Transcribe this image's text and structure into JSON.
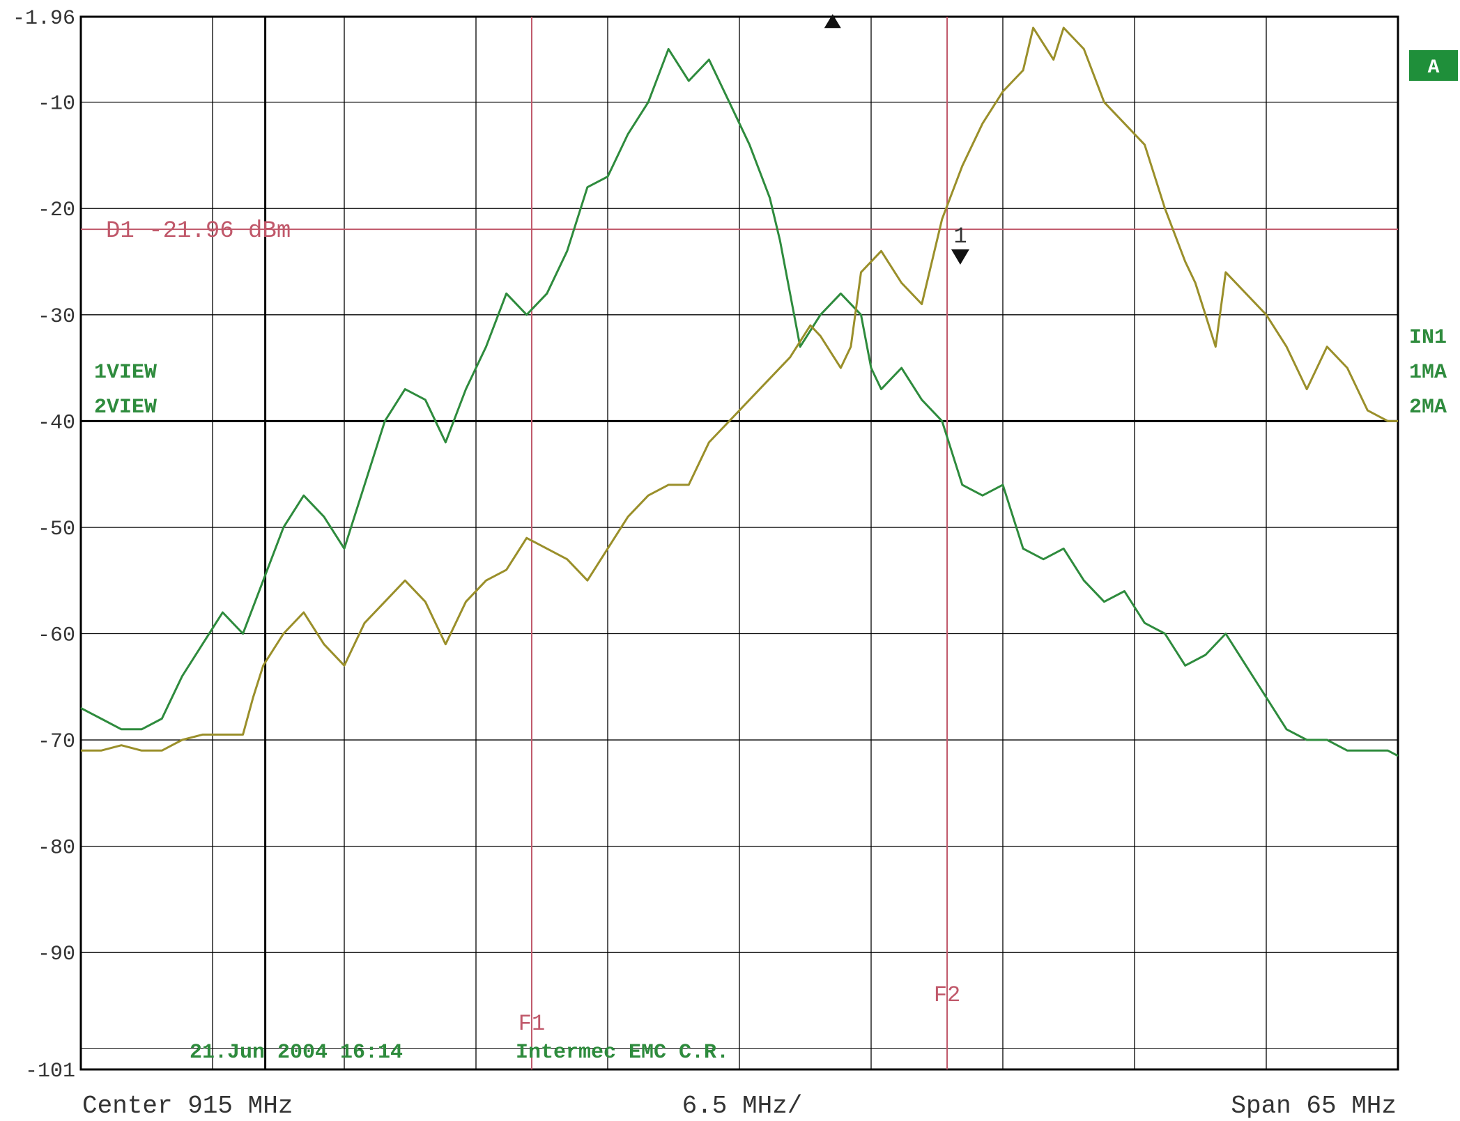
{
  "chart_data": {
    "type": "line",
    "title": "",
    "xlabel": "",
    "ylabel": "",
    "x_unit": "MHz",
    "y_unit": "dBm",
    "xlim": [
      882.5,
      947.5
    ],
    "ylim": [
      -101,
      -1.96
    ],
    "x_grid_step": 6.5,
    "y_ticks": [
      {
        "value": -1.96,
        "label": "-1.96"
      },
      {
        "value": -10,
        "label": "-10"
      },
      {
        "value": -20,
        "label": "-20"
      },
      {
        "value": -30,
        "label": "-30"
      },
      {
        "value": -40,
        "label": "-40"
      },
      {
        "value": -50,
        "label": "-50"
      },
      {
        "value": -60,
        "label": "-60"
      },
      {
        "value": -70,
        "label": "-70"
      },
      {
        "value": -80,
        "label": "-80"
      },
      {
        "value": -90,
        "label": "-90"
      },
      {
        "value": -101,
        "label": "-101"
      }
    ],
    "grid": true,
    "bottom_labels": {
      "center": "Center 915 MHz",
      "scale": "6.5 MHz/",
      "span": "Span 65 MHz"
    },
    "annotation_date": "21.Jun 2004 16:14",
    "annotation_lab": "Intermec EMC C.R.",
    "display_line": {
      "label": "D1 -21.96 dBm",
      "value": -21.96
    },
    "frequency_lines": [
      {
        "label": "F1",
        "x": 904.75
      },
      {
        "label": "F2",
        "x": 925.25
      }
    ],
    "reference_line": {
      "y": -40,
      "x": 891.6
    },
    "marker": {
      "label": "1",
      "x": 925.9,
      "y": -24.5
    },
    "peak_marker": {
      "x": 919.6,
      "y": -2.5
    },
    "left_labels": [
      "1VIEW",
      "2VIEW"
    ],
    "right_labels": [
      "IN1",
      "1MA",
      "2MA"
    ],
    "screen_label": "A",
    "colors": {
      "trace1": "#2e8b3d",
      "trace2": "#9a8f2a",
      "grid": "#000000",
      "freq_lines": "#c0586a",
      "display_line": "#c0586a",
      "text": "#333333",
      "annotation": "#2e8b3d",
      "screen_badge": "#1f8f3a"
    },
    "series": [
      {
        "name": "",
        "color_key": "trace1",
        "points": [
          [
            882.5,
            -67
          ],
          [
            883.5,
            -68
          ],
          [
            884.5,
            -69
          ],
          [
            885.5,
            -69
          ],
          [
            886.5,
            -68
          ],
          [
            887.5,
            -64
          ],
          [
            888.5,
            -61
          ],
          [
            889.5,
            -58
          ],
          [
            890.5,
            -60
          ],
          [
            891.5,
            -55
          ],
          [
            892.5,
            -50
          ],
          [
            893.5,
            -47
          ],
          [
            894.5,
            -49
          ],
          [
            895.5,
            -52
          ],
          [
            896.5,
            -46
          ],
          [
            897.5,
            -40
          ],
          [
            898.5,
            -37
          ],
          [
            899.5,
            -38
          ],
          [
            900.5,
            -42
          ],
          [
            901.5,
            -37
          ],
          [
            902.5,
            -33
          ],
          [
            903.5,
            -28
          ],
          [
            904.5,
            -30
          ],
          [
            905.5,
            -28
          ],
          [
            906.5,
            -24
          ],
          [
            907.5,
            -18
          ],
          [
            908.5,
            -17
          ],
          [
            909.5,
            -13
          ],
          [
            910.5,
            -10
          ],
          [
            911.5,
            -5
          ],
          [
            912.5,
            -8
          ],
          [
            913.5,
            -6
          ],
          [
            914.5,
            -10
          ],
          [
            915.5,
            -14
          ],
          [
            916.5,
            -19
          ],
          [
            917.0,
            -23
          ],
          [
            918.0,
            -33
          ],
          [
            919.0,
            -30
          ],
          [
            920.0,
            -28
          ],
          [
            921.0,
            -30
          ],
          [
            921.5,
            -35
          ],
          [
            922.0,
            -37
          ],
          [
            923.0,
            -35
          ],
          [
            924.0,
            -38
          ],
          [
            925.0,
            -40
          ],
          [
            926.0,
            -46
          ],
          [
            927.0,
            -47
          ],
          [
            928.0,
            -46
          ],
          [
            929.0,
            -52
          ],
          [
            930.0,
            -53
          ],
          [
            931.0,
            -52
          ],
          [
            932.0,
            -55
          ],
          [
            933.0,
            -57
          ],
          [
            934.0,
            -56
          ],
          [
            935.0,
            -59
          ],
          [
            936.0,
            -60
          ],
          [
            937.0,
            -63
          ],
          [
            938.0,
            -62
          ],
          [
            939.0,
            -60
          ],
          [
            940.0,
            -63
          ],
          [
            941.0,
            -66
          ],
          [
            942.0,
            -69
          ],
          [
            943.0,
            -70
          ],
          [
            944.0,
            -70
          ],
          [
            945.0,
            -71
          ],
          [
            946.0,
            -71
          ],
          [
            947.0,
            -71
          ],
          [
            947.5,
            -71.5
          ]
        ]
      },
      {
        "name": "",
        "color_key": "trace2",
        "points": [
          [
            882.5,
            -71
          ],
          [
            883.5,
            -71
          ],
          [
            884.5,
            -70.5
          ],
          [
            885.5,
            -71
          ],
          [
            886.5,
            -71
          ],
          [
            887.5,
            -70
          ],
          [
            888.5,
            -69.5
          ],
          [
            889.5,
            -69.5
          ],
          [
            890.5,
            -69.5
          ],
          [
            891.0,
            -66
          ],
          [
            891.5,
            -63
          ],
          [
            892.5,
            -60
          ],
          [
            893.5,
            -58
          ],
          [
            894.5,
            -61
          ],
          [
            895.5,
            -63
          ],
          [
            896.5,
            -59
          ],
          [
            897.5,
            -57
          ],
          [
            898.5,
            -55
          ],
          [
            899.5,
            -57
          ],
          [
            900.5,
            -61
          ],
          [
            901.5,
            -57
          ],
          [
            902.5,
            -55
          ],
          [
            903.5,
            -54
          ],
          [
            904.5,
            -51
          ],
          [
            905.5,
            -52
          ],
          [
            906.5,
            -53
          ],
          [
            907.5,
            -55
          ],
          [
            908.5,
            -52
          ],
          [
            909.5,
            -49
          ],
          [
            910.5,
            -47
          ],
          [
            911.5,
            -46
          ],
          [
            912.5,
            -46
          ],
          [
            913.5,
            -42
          ],
          [
            914.5,
            -40
          ],
          [
            915.5,
            -38
          ],
          [
            916.5,
            -36
          ],
          [
            917.5,
            -34
          ],
          [
            918.5,
            -31
          ],
          [
            919.0,
            -32
          ],
          [
            920.0,
            -35
          ],
          [
            920.5,
            -33
          ],
          [
            921.0,
            -26
          ],
          [
            922.0,
            -24
          ],
          [
            923.0,
            -27
          ],
          [
            924.0,
            -29
          ],
          [
            925.0,
            -21
          ],
          [
            926.0,
            -16
          ],
          [
            927.0,
            -12
          ],
          [
            928.0,
            -9
          ],
          [
            929.0,
            -7
          ],
          [
            929.5,
            -3
          ],
          [
            930.5,
            -6
          ],
          [
            931.0,
            -3
          ],
          [
            932.0,
            -5
          ],
          [
            933.0,
            -10
          ],
          [
            934.0,
            -12
          ],
          [
            935.0,
            -14
          ],
          [
            936.0,
            -20
          ],
          [
            937.0,
            -25
          ],
          [
            937.5,
            -27
          ],
          [
            938.5,
            -33
          ],
          [
            939.0,
            -26
          ],
          [
            940.0,
            -28
          ],
          [
            941.0,
            -30
          ],
          [
            942.0,
            -33
          ],
          [
            943.0,
            -37
          ],
          [
            944.0,
            -33
          ],
          [
            945.0,
            -35
          ],
          [
            946.0,
            -39
          ],
          [
            947.0,
            -40
          ],
          [
            947.5,
            -40
          ]
        ]
      }
    ]
  }
}
